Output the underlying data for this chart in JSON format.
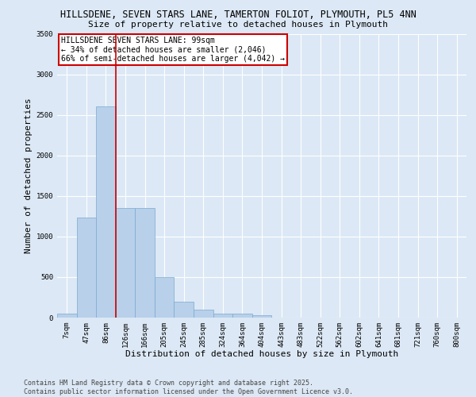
{
  "title_line1": "HILLSDENE, SEVEN STARS LANE, TAMERTON FOLIOT, PLYMOUTH, PL5 4NN",
  "title_line2": "Size of property relative to detached houses in Plymouth",
  "xlabel": "Distribution of detached houses by size in Plymouth",
  "ylabel": "Number of detached properties",
  "bar_labels": [
    "7sqm",
    "47sqm",
    "86sqm",
    "126sqm",
    "166sqm",
    "205sqm",
    "245sqm",
    "285sqm",
    "324sqm",
    "364sqm",
    "404sqm",
    "443sqm",
    "483sqm",
    "522sqm",
    "562sqm",
    "602sqm",
    "641sqm",
    "681sqm",
    "721sqm",
    "760sqm",
    "800sqm"
  ],
  "bar_values": [
    50,
    1230,
    2600,
    1350,
    1350,
    500,
    200,
    100,
    50,
    50,
    30,
    0,
    0,
    0,
    0,
    0,
    0,
    0,
    0,
    0,
    0
  ],
  "bar_color": "#b8d0ea",
  "bar_edgecolor": "#7aaad0",
  "background_color": "#dce8f5",
  "grid_color": "#ffffff",
  "vline_color": "#cc0000",
  "vline_pos": 2.5,
  "ylim": [
    0,
    3500
  ],
  "yticks": [
    0,
    500,
    1000,
    1500,
    2000,
    2500,
    3000,
    3500
  ],
  "annotation_title": "HILLSDENE SEVEN STARS LANE: 99sqm",
  "annotation_line1": "← 34% of detached houses are smaller (2,046)",
  "annotation_line2": "66% of semi-detached houses are larger (4,042) →",
  "annotation_box_edgecolor": "#cc0000",
  "footer_line1": "Contains HM Land Registry data © Crown copyright and database right 2025.",
  "footer_line2": "Contains public sector information licensed under the Open Government Licence v3.0.",
  "title_fontsize": 8.5,
  "subtitle_fontsize": 8,
  "axis_label_fontsize": 8,
  "tick_fontsize": 6.5,
  "annotation_fontsize": 7,
  "footer_fontsize": 6
}
